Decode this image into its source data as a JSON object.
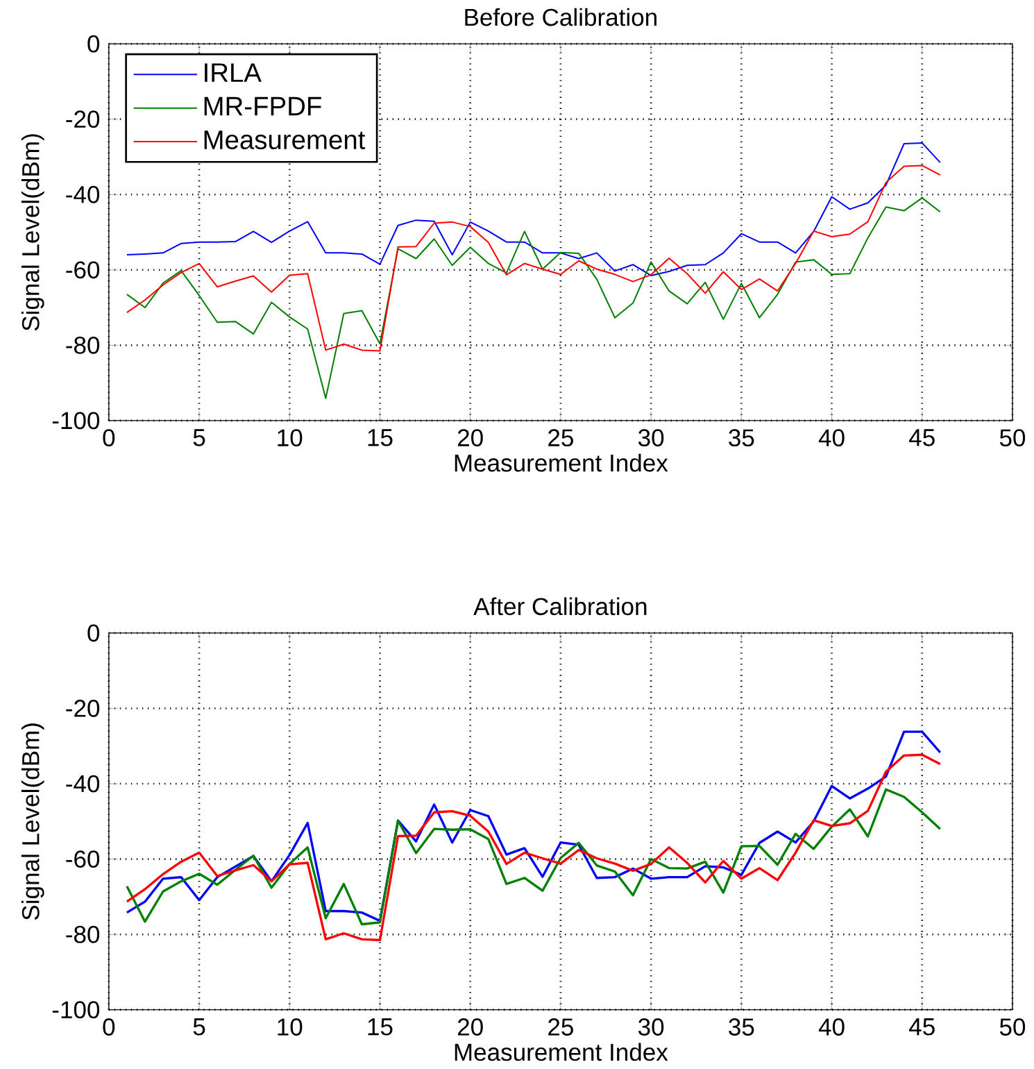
{
  "chart_data": [
    {
      "type": "line",
      "title": "Before Calibration",
      "xlabel": "Measurement Index",
      "ylabel": "Signal Level(dBm)",
      "x": [
        1,
        2,
        3,
        4,
        5,
        6,
        7,
        8,
        9,
        10,
        11,
        12,
        13,
        14,
        15,
        16,
        17,
        18,
        19,
        20,
        21,
        22,
        23,
        24,
        25,
        26,
        27,
        28,
        29,
        30,
        31,
        32,
        33,
        34,
        35,
        36,
        37,
        38,
        39,
        40,
        41,
        42,
        43,
        44,
        45,
        46
      ],
      "xlim": [
        0,
        50
      ],
      "xticks": [
        0,
        5,
        10,
        15,
        20,
        25,
        30,
        35,
        40,
        45,
        50
      ],
      "ylim": [
        -100,
        0
      ],
      "yticks": [
        -100,
        -80,
        -60,
        -40,
        -20,
        0
      ],
      "grid": true,
      "legend": "top left",
      "series": [
        {
          "name": "IRLA",
          "color": "#0000ff",
          "values": [
            -56,
            -55.8,
            -55.5,
            -53,
            -52.6,
            -52.6,
            -52.5,
            -49.8,
            -52.7,
            -49.7,
            -47.2,
            -55.5,
            -55.5,
            -55.8,
            -58.5,
            -48.2,
            -46.8,
            -47.1,
            -56,
            -47.3,
            -49.7,
            -52.6,
            -52.6,
            -55.5,
            -55.5,
            -57,
            -55.5,
            -60.3,
            -58.6,
            -61.5,
            -60.4,
            -58.8,
            -58.6,
            -55.5,
            -50.4,
            -52.6,
            -52.6,
            -55.5,
            -49.8,
            -40.6,
            -43.9,
            -42.2,
            -37.5,
            -26.5,
            -26.3,
            -31.5
          ]
        },
        {
          "name": "MR-FPDF",
          "color": "#008000",
          "values": [
            -66.5,
            -70,
            -63.5,
            -60.2,
            -66.8,
            -73.9,
            -73.7,
            -77,
            -68.6,
            -72.5,
            -75.7,
            -94.1,
            -71.6,
            -70.8,
            -79.6,
            -54.4,
            -57,
            -51.8,
            -58.8,
            -54,
            -58.3,
            -60.8,
            -49.8,
            -59.8,
            -55.4,
            -55.6,
            -62.5,
            -72.7,
            -68.8,
            -57.9,
            -65.6,
            -69,
            -63.3,
            -73.1,
            -63.6,
            -72.7,
            -66.5,
            -57.9,
            -57.3,
            -61.2,
            -61,
            -51.5,
            -43.3,
            -44.3,
            -40.9,
            -44.6
          ]
        },
        {
          "name": "Measurement",
          "color": "#ff0000",
          "values": [
            -71.3,
            -68,
            -64,
            -60.7,
            -58.3,
            -64.5,
            -63,
            -61.6,
            -65.9,
            -61.4,
            -61,
            -81.3,
            -79.7,
            -81.3,
            -81.5,
            -53.9,
            -53.8,
            -47.6,
            -47.3,
            -48.5,
            -52.7,
            -61.3,
            -58.3,
            -59.8,
            -61.2,
            -57.6,
            -59.8,
            -61.2,
            -63.1,
            -61.3,
            -56.9,
            -61,
            -66.2,
            -60.5,
            -65.2,
            -62.4,
            -65.6,
            -58.3,
            -49.7,
            -51.2,
            -50.5,
            -47.2,
            -36.8,
            -32.5,
            -32.3,
            -34.8
          ]
        }
      ]
    },
    {
      "type": "line",
      "title": "After Calibration",
      "xlabel": "Measurement Index",
      "ylabel": "Signal Level(dBm)",
      "x": [
        1,
        2,
        3,
        4,
        5,
        6,
        7,
        8,
        9,
        10,
        11,
        12,
        13,
        14,
        15,
        16,
        17,
        18,
        19,
        20,
        21,
        22,
        23,
        24,
        25,
        26,
        27,
        28,
        29,
        30,
        31,
        32,
        33,
        34,
        35,
        36,
        37,
        38,
        39,
        40,
        41,
        42,
        43,
        44,
        45,
        46
      ],
      "xlim": [
        0,
        50
      ],
      "xticks": [
        0,
        5,
        10,
        15,
        20,
        25,
        30,
        35,
        40,
        45,
        50
      ],
      "ylim": [
        -100,
        0
      ],
      "yticks": [
        -100,
        -80,
        -60,
        -40,
        -20,
        0
      ],
      "grid": true,
      "series": [
        {
          "color": "#0000ff",
          "values": [
            -74.2,
            -71.3,
            -65.2,
            -64.8,
            -70.9,
            -64.8,
            -62,
            -59.2,
            -65.9,
            -58.9,
            -50.4,
            -73.8,
            -73.8,
            -74.2,
            -76.4,
            -49.8,
            -55.3,
            -45.5,
            -55.6,
            -47,
            -48.6,
            -58.8,
            -57.1,
            -64.7,
            -55.6,
            -56.2,
            -65,
            -64.8,
            -62.5,
            -65.2,
            -64.8,
            -64.8,
            -61.9,
            -62.2,
            -64.2,
            -55.7,
            -52.7,
            -55.6,
            -50,
            -40.6,
            -43.9,
            -41.3,
            -38.1,
            -26.2,
            -26.2,
            -31.7
          ]
        },
        {
          "color": "#008000",
          "values": [
            -67.2,
            -76.6,
            -68.6,
            -65.9,
            -63.9,
            -66.8,
            -62.9,
            -59.1,
            -67.6,
            -61.3,
            -56.9,
            -75.7,
            -66.6,
            -77.3,
            -76.8,
            -49.8,
            -58.4,
            -52,
            -52.2,
            -52.1,
            -54.7,
            -66.6,
            -65,
            -68.4,
            -59.7,
            -55.7,
            -61.7,
            -63.3,
            -69.6,
            -60,
            -62.4,
            -62.5,
            -60.7,
            -68.9,
            -56.6,
            -56.5,
            -61.5,
            -53.3,
            -57.3,
            -51.4,
            -46.8,
            -54,
            -41.5,
            -43.5,
            -47.6,
            -52
          ]
        },
        {
          "color": "#ff0000",
          "values": [
            -71.3,
            -68,
            -64,
            -60.7,
            -58.3,
            -64.5,
            -63,
            -61.6,
            -65.9,
            -61.4,
            -61,
            -81.3,
            -79.7,
            -81.3,
            -81.5,
            -53.9,
            -53.8,
            -47.6,
            -47.3,
            -48.5,
            -52.7,
            -61.3,
            -58.3,
            -59.8,
            -61.2,
            -57.6,
            -59.8,
            -61.2,
            -63.1,
            -61.3,
            -56.9,
            -61,
            -66.2,
            -60.5,
            -65.2,
            -62.4,
            -65.6,
            -58.3,
            -49.7,
            -51.2,
            -50.5,
            -47.2,
            -36.8,
            -32.5,
            -32.3,
            -34.8
          ]
        }
      ]
    }
  ]
}
